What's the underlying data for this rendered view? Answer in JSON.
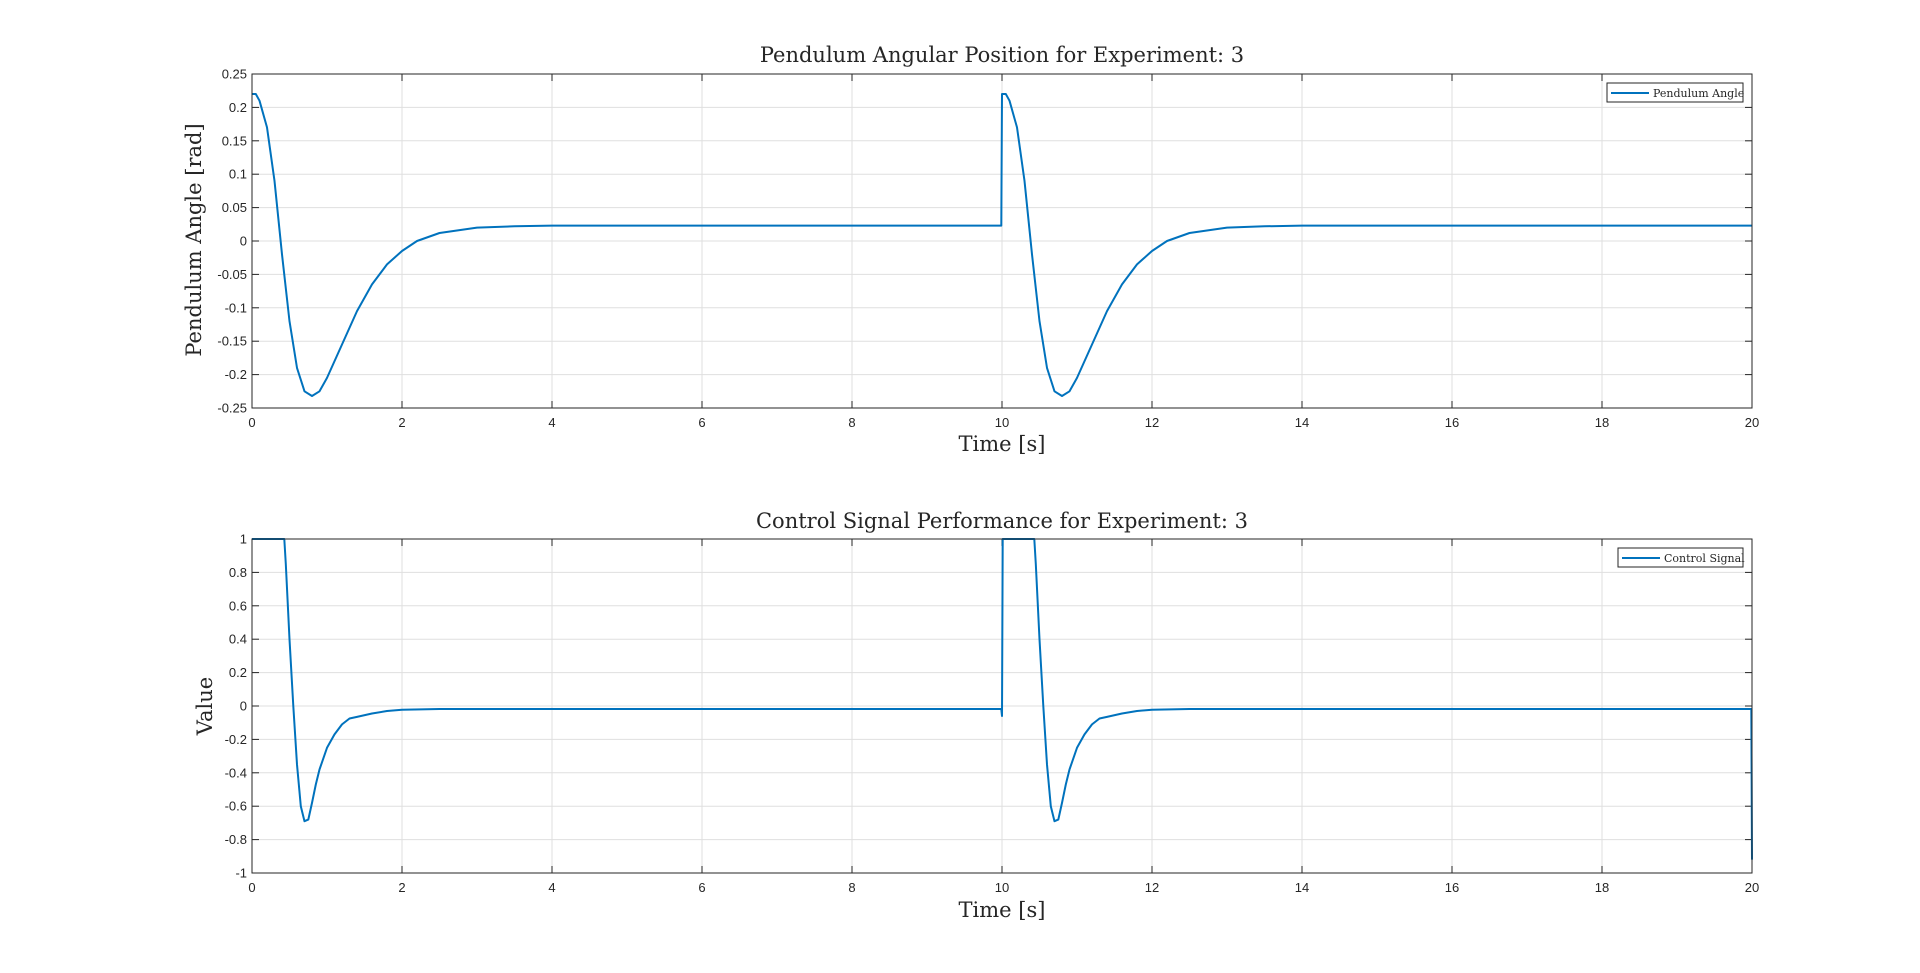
{
  "figure": {
    "background": "#ffffff"
  },
  "chart_data": [
    {
      "type": "line",
      "title": "Pendulum Angular Position for Experiment: 3",
      "xlabel": "Time [s]",
      "ylabel": "Pendulum Angle [rad]",
      "xlim": [
        0,
        20
      ],
      "ylim": [
        -0.25,
        0.25
      ],
      "xticks": [
        0,
        2,
        4,
        6,
        8,
        10,
        12,
        14,
        16,
        18,
        20
      ],
      "xtick_labels": [
        "0",
        "2",
        "4",
        "6",
        "8",
        "10",
        "12",
        "14",
        "16",
        "18",
        "20"
      ],
      "yticks": [
        -0.25,
        -0.2,
        -0.15,
        -0.1,
        -0.05,
        0,
        0.05,
        0.1,
        0.15,
        0.2,
        0.25
      ],
      "ytick_labels": [
        "-0.25",
        "-0.2",
        "-0.15",
        "-0.1",
        "-0.05",
        "0",
        "0.05",
        "0.1",
        "0.15",
        "0.2",
        "0.25"
      ],
      "grid": true,
      "legend": {
        "position": "top-right"
      },
      "series": [
        {
          "name": "Pendulum Angle",
          "color": "#0072BD",
          "x": [
            0,
            0.05,
            0.1,
            0.2,
            0.3,
            0.4,
            0.5,
            0.6,
            0.7,
            0.8,
            0.9,
            1.0,
            1.2,
            1.4,
            1.6,
            1.8,
            2.0,
            2.2,
            2.5,
            3.0,
            3.5,
            4.0,
            5.0,
            7.0,
            9.0,
            9.99,
            10.0,
            10.05,
            10.1,
            10.2,
            10.3,
            10.4,
            10.5,
            10.6,
            10.7,
            10.8,
            10.9,
            11.0,
            11.2,
            11.4,
            11.6,
            11.8,
            12.0,
            12.2,
            12.5,
            13.0,
            13.5,
            14.0,
            15.0,
            17.0,
            20.0
          ],
          "y": [
            0.22,
            0.22,
            0.21,
            0.17,
            0.09,
            -0.02,
            -0.12,
            -0.19,
            -0.225,
            -0.232,
            -0.225,
            -0.205,
            -0.155,
            -0.105,
            -0.065,
            -0.035,
            -0.015,
            0.0,
            0.012,
            0.02,
            0.022,
            0.023,
            0.023,
            0.023,
            0.023,
            0.023,
            0.22,
            0.22,
            0.21,
            0.17,
            0.09,
            -0.02,
            -0.12,
            -0.19,
            -0.225,
            -0.232,
            -0.225,
            -0.205,
            -0.155,
            -0.105,
            -0.065,
            -0.035,
            -0.015,
            0.0,
            0.012,
            0.02,
            0.022,
            0.023,
            0.023,
            0.023,
            0.023
          ]
        }
      ]
    },
    {
      "type": "line",
      "title": "Control Signal Performance for Experiment: 3",
      "xlabel": "Time [s]",
      "ylabel": "Value",
      "xlim": [
        0,
        20
      ],
      "ylim": [
        -1,
        1
      ],
      "xticks": [
        0,
        2,
        4,
        6,
        8,
        10,
        12,
        14,
        16,
        18,
        20
      ],
      "xtick_labels": [
        "0",
        "2",
        "4",
        "6",
        "8",
        "10",
        "12",
        "14",
        "16",
        "18",
        "20"
      ],
      "yticks": [
        -1,
        -0.8,
        -0.6,
        -0.4,
        -0.2,
        0,
        0.2,
        0.4,
        0.6,
        0.8,
        1
      ],
      "ytick_labels": [
        "-1",
        "-0.8",
        "-0.6",
        "-0.4",
        "-0.2",
        "0",
        "0.2",
        "0.4",
        "0.6",
        "0.8",
        "1"
      ],
      "grid": true,
      "legend": {
        "position": "top-right"
      },
      "series": [
        {
          "name": "Control Signal",
          "color": "#0072BD",
          "x": [
            0,
            0.43,
            0.45,
            0.5,
            0.55,
            0.6,
            0.65,
            0.7,
            0.75,
            0.8,
            0.85,
            0.9,
            1.0,
            1.1,
            1.2,
            1.3,
            1.4,
            1.6,
            1.8,
            2.0,
            2.5,
            3.0,
            5.0,
            7.0,
            9.99,
            10.0,
            10.01,
            10.02,
            10.43,
            10.45,
            10.5,
            10.55,
            10.6,
            10.65,
            10.7,
            10.75,
            10.8,
            10.85,
            10.9,
            11.0,
            11.1,
            11.2,
            11.3,
            11.4,
            11.6,
            11.8,
            12.0,
            12.5,
            13.0,
            15.0,
            18.0,
            19.99,
            20.0
          ],
          "y": [
            1,
            1,
            0.85,
            0.4,
            0.0,
            -0.35,
            -0.6,
            -0.69,
            -0.68,
            -0.58,
            -0.47,
            -0.38,
            -0.25,
            -0.17,
            -0.11,
            -0.075,
            -0.065,
            -0.045,
            -0.03,
            -0.022,
            -0.018,
            -0.018,
            -0.018,
            -0.018,
            -0.018,
            -0.06,
            1,
            1,
            1,
            0.85,
            0.4,
            0.0,
            -0.35,
            -0.6,
            -0.69,
            -0.68,
            -0.58,
            -0.47,
            -0.38,
            -0.25,
            -0.17,
            -0.11,
            -0.075,
            -0.065,
            -0.045,
            -0.03,
            -0.022,
            -0.018,
            -0.018,
            -0.018,
            -0.018,
            -0.018,
            -0.92
          ]
        }
      ]
    }
  ]
}
